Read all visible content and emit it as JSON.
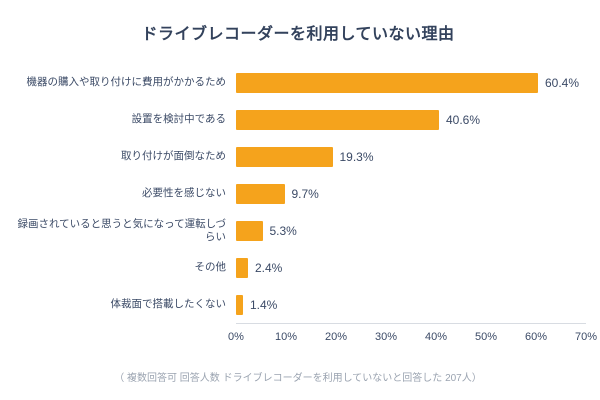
{
  "chart_data": {
    "type": "bar",
    "orientation": "horizontal",
    "title": "ドライブレコーダーを利用していない理由",
    "categories": [
      "機器の購入や取り付けに費用がかかるため",
      "設置を検討中である",
      "取り付けが面倒なため",
      "必要性を感じない",
      "録画されていると思うと気になって運転しづらい",
      "その他",
      "体裁面で搭載したくない"
    ],
    "values": [
      60.4,
      40.6,
      19.3,
      9.7,
      5.3,
      2.4,
      1.4
    ],
    "value_labels": [
      "60.4%",
      "40.6%",
      "19.3%",
      "9.7%",
      "5.3%",
      "2.4%",
      "1.4%"
    ],
    "xlim": [
      0,
      70
    ],
    "xticks": [
      "0%",
      "10%",
      "20%",
      "30%",
      "40%",
      "50%",
      "60%",
      "70%"
    ],
    "footnote": "（ 複数回答可 回答人数 ドライブレコーダーを利用していないと回答した 207人）",
    "bar_color": "#F5A31C",
    "legend": "none",
    "grid": "off"
  }
}
